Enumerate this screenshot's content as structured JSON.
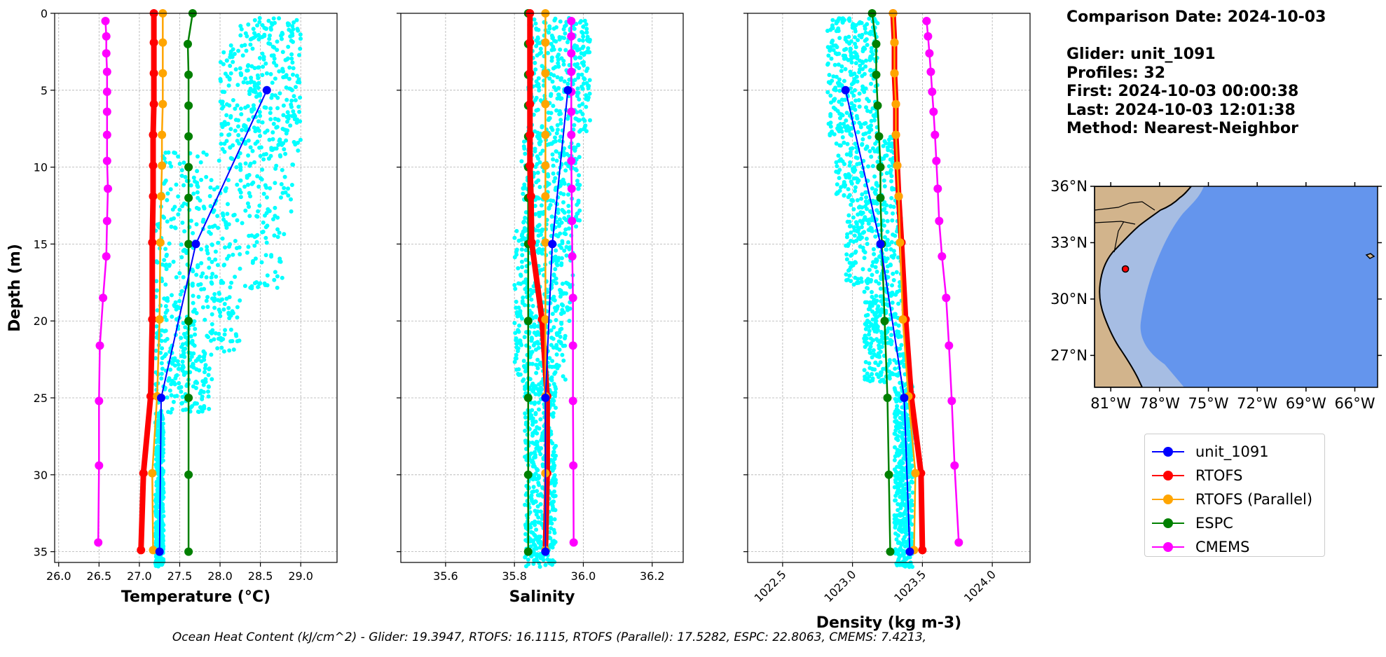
{
  "info": {
    "comparison_date": "Comparison Date: 2024-10-03",
    "glider": "Glider: unit_1091",
    "profiles": "Profiles: 32",
    "first": "First: 2024-10-03 00:00:38",
    "last": "Last: 2024-10-03 12:01:38",
    "method": "Method: Nearest-Neighbor"
  },
  "footer": "Ocean Heat Content (kJ/cm^2) - Glider: 19.3947,  RTOFS: 16.1115,  RTOFS (Parallel): 17.5282,  ESPC: 22.8063,  CMEMS: 7.4213,",
  "colors": {
    "glider": "#0000ff",
    "rtofs": "#ff0000",
    "rtofs_parallel": "#ffa500",
    "espc": "#008000",
    "cmems": "#ff00ff",
    "scatter": "#00ffff",
    "ocean": "#6495ed",
    "shelf": "#a6bde3",
    "land": "#d2b48c"
  },
  "legend": [
    {
      "label": "unit_1091",
      "color": "#0000ff"
    },
    {
      "label": "RTOFS",
      "color": "#ff0000"
    },
    {
      "label": "RTOFS (Parallel)",
      "color": "#ffa500"
    },
    {
      "label": "ESPC",
      "color": "#008000"
    },
    {
      "label": "CMEMS",
      "color": "#ff00ff"
    }
  ],
  "chart_data": [
    {
      "type": "line",
      "xlabel": "Temperature (°C)",
      "ylabel": "Depth (m)",
      "xlim": [
        25.95,
        29.45
      ],
      "ylim": [
        35.7,
        0
      ],
      "xticks": [
        26.0,
        26.5,
        27.0,
        27.5,
        28.0,
        28.5,
        29.0
      ],
      "yticks": [
        0,
        5,
        10,
        15,
        20,
        25,
        30,
        35
      ],
      "grid": true,
      "scatter_cloud": {
        "name": "glider profiles",
        "bands": [
          {
            "depth": [
              0.3,
              2.0
            ],
            "xmin": 28.25,
            "xmax": 29.0
          },
          {
            "depth": [
              2.0,
              9.0
            ],
            "xmin": 28.0,
            "xmax": 29.0
          },
          {
            "depth": [
              9.0,
              13.0
            ],
            "xmin": 27.25,
            "xmax": 28.95
          },
          {
            "depth": [
              13.0,
              18.0
            ],
            "xmin": 27.2,
            "xmax": 28.8
          },
          {
            "depth": [
              18.0,
              22.0
            ],
            "xmin": 27.2,
            "xmax": 28.25
          },
          {
            "depth": [
              22.0,
              26.0
            ],
            "xmin": 27.2,
            "xmax": 27.9
          },
          {
            "depth": [
              26.0,
              36.0
            ],
            "xmin": 27.2,
            "xmax": 27.3
          }
        ]
      },
      "series": [
        {
          "name": "unit_1091",
          "color": "#0000ff",
          "depth": [
            5,
            15,
            25,
            35
          ],
          "values": [
            28.58,
            27.7,
            27.27,
            27.25
          ]
        },
        {
          "name": "RTOFS",
          "color": "#ff0000",
          "depth": [
            0,
            1.9,
            3.9,
            5.9,
            7.9,
            9.9,
            11.9,
            14.9,
            19.9,
            24.9,
            29.9,
            34.9
          ],
          "values": [
            27.18,
            27.18,
            27.18,
            27.18,
            27.17,
            27.17,
            27.17,
            27.16,
            27.16,
            27.14,
            27.05,
            27.02
          ]
        },
        {
          "name": "RTOFS (Parallel)",
          "color": "#ffa500",
          "depth": [
            0,
            1.9,
            3.9,
            5.9,
            7.9,
            9.9,
            11.9,
            14.9,
            19.9,
            24.9,
            29.9,
            34.9
          ],
          "values": [
            27.29,
            27.29,
            27.29,
            27.29,
            27.28,
            27.28,
            27.27,
            27.26,
            27.25,
            27.22,
            27.16,
            27.17
          ]
        },
        {
          "name": "ESPC",
          "color": "#008000",
          "depth": [
            0,
            2,
            4,
            6,
            8,
            10,
            12,
            15,
            20,
            25,
            30,
            35
          ],
          "values": [
            27.66,
            27.6,
            27.61,
            27.61,
            27.61,
            27.61,
            27.61,
            27.61,
            27.61,
            27.61,
            27.61,
            27.61
          ]
        },
        {
          "name": "CMEMS",
          "color": "#ff00ff",
          "depth": [
            0.5,
            1.5,
            2.6,
            3.8,
            5.1,
            6.4,
            7.9,
            9.6,
            11.4,
            13.5,
            15.8,
            18.5,
            21.6,
            25.2,
            29.4,
            34.4
          ],
          "values": [
            26.58,
            26.59,
            26.59,
            26.6,
            26.6,
            26.6,
            26.6,
            26.6,
            26.61,
            26.6,
            26.59,
            26.55,
            26.51,
            26.5,
            26.5,
            26.49
          ]
        }
      ]
    },
    {
      "type": "line",
      "xlabel": "Salinity",
      "ylabel": "",
      "xlim": [
        35.47,
        36.29
      ],
      "ylim": [
        35.7,
        0
      ],
      "xticks": [
        35.6,
        35.8,
        36.0,
        36.2
      ],
      "yticks": [
        0,
        5,
        10,
        15,
        20,
        25,
        30,
        35
      ],
      "grid": true,
      "scatter_cloud": {
        "name": "glider profiles",
        "bands": [
          {
            "depth": [
              0.3,
              8.0
            ],
            "xmin": 35.84,
            "xmax": 36.02
          },
          {
            "depth": [
              8.0,
              14.0
            ],
            "xmin": 35.82,
            "xmax": 35.99
          },
          {
            "depth": [
              14.0,
              20.0
            ],
            "xmin": 35.8,
            "xmax": 35.97
          },
          {
            "depth": [
              20.0,
              24.0
            ],
            "xmin": 35.8,
            "xmax": 35.95
          },
          {
            "depth": [
              24.0,
              36.0
            ],
            "xmin": 35.83,
            "xmax": 35.92
          }
        ]
      },
      "series": [
        {
          "name": "unit_1091",
          "color": "#0000ff",
          "depth": [
            5,
            15,
            25,
            35
          ],
          "values": [
            35.955,
            35.91,
            35.89,
            35.89
          ]
        },
        {
          "name": "RTOFS",
          "color": "#ff0000",
          "depth": [
            0,
            1.9,
            3.9,
            5.9,
            7.9,
            9.9,
            11.9,
            14.9,
            19.9,
            24.9,
            29.9,
            34.9
          ],
          "values": [
            35.845,
            35.845,
            35.845,
            35.845,
            35.845,
            35.845,
            35.848,
            35.85,
            35.88,
            35.895,
            35.895,
            35.89
          ]
        },
        {
          "name": "RTOFS (Parallel)",
          "color": "#ffa500",
          "depth": [
            0,
            1.9,
            3.9,
            5.9,
            7.9,
            9.9,
            11.9,
            14.9,
            19.9,
            24.9,
            29.9,
            34.9
          ],
          "values": [
            35.89,
            35.89,
            35.89,
            35.89,
            35.89,
            35.89,
            35.89,
            35.89,
            35.89,
            35.89,
            35.89,
            35.89
          ]
        },
        {
          "name": "ESPC",
          "color": "#008000",
          "depth": [
            0,
            2,
            4,
            6,
            8,
            10,
            12,
            15,
            20,
            25,
            30,
            35
          ],
          "values": [
            35.84,
            35.84,
            35.84,
            35.84,
            35.84,
            35.84,
            35.84,
            35.84,
            35.84,
            35.84,
            35.84,
            35.84
          ]
        },
        {
          "name": "CMEMS",
          "color": "#ff00ff",
          "depth": [
            0.5,
            1.5,
            2.6,
            3.8,
            5.1,
            6.4,
            7.9,
            9.6,
            11.4,
            13.5,
            15.8,
            18.5,
            21.6,
            25.2,
            29.4,
            34.4
          ],
          "values": [
            35.965,
            35.965,
            35.965,
            35.965,
            35.965,
            35.965,
            35.965,
            35.965,
            35.966,
            35.967,
            35.968,
            35.97,
            35.97,
            35.97,
            35.971,
            35.972
          ]
        }
      ]
    },
    {
      "type": "line",
      "xlabel": "Density (kg m-3)",
      "ylabel": "",
      "xlim": [
        1022.25,
        1024.27
      ],
      "ylim": [
        35.7,
        0
      ],
      "xticks": [
        1022.5,
        1023.0,
        1023.5,
        1024.0
      ],
      "yticks": [
        0,
        5,
        10,
        15,
        20,
        25,
        30,
        35
      ],
      "grid": true,
      "scatter_cloud": {
        "name": "glider profiles",
        "bands": [
          {
            "depth": [
              0.3,
              8.0
            ],
            "xmin": 1022.82,
            "xmax": 1023.18
          },
          {
            "depth": [
              8.0,
              12.0
            ],
            "xmin": 1022.88,
            "xmax": 1023.3
          },
          {
            "depth": [
              12.0,
              18.0
            ],
            "xmin": 1022.95,
            "xmax": 1023.35
          },
          {
            "depth": [
              18.0,
              24.0
            ],
            "xmin": 1023.08,
            "xmax": 1023.38
          },
          {
            "depth": [
              24.0,
              36.0
            ],
            "xmin": 1023.3,
            "xmax": 1023.43
          }
        ]
      },
      "series": [
        {
          "name": "unit_1091",
          "color": "#0000ff",
          "depth": [
            5,
            15,
            25,
            35
          ],
          "values": [
            1022.95,
            1023.2,
            1023.37,
            1023.41
          ]
        },
        {
          "name": "RTOFS",
          "color": "#ff0000",
          "depth": [
            0,
            1.9,
            3.9,
            5.9,
            7.9,
            9.9,
            11.9,
            14.9,
            19.9,
            24.9,
            29.9,
            34.9
          ],
          "values": [
            1023.29,
            1023.3,
            1023.3,
            1023.31,
            1023.31,
            1023.32,
            1023.33,
            1023.35,
            1023.38,
            1023.42,
            1023.49,
            1023.5
          ]
        },
        {
          "name": "RTOFS (Parallel)",
          "color": "#ffa500",
          "depth": [
            0,
            1.9,
            3.9,
            5.9,
            7.9,
            9.9,
            11.9,
            14.9,
            19.9,
            24.9,
            29.9,
            34.9
          ],
          "values": [
            1023.29,
            1023.3,
            1023.3,
            1023.31,
            1023.31,
            1023.32,
            1023.33,
            1023.34,
            1023.36,
            1023.4,
            1023.45,
            1023.44
          ]
        },
        {
          "name": "ESPC",
          "color": "#008000",
          "depth": [
            0,
            2,
            4,
            6,
            8,
            10,
            12,
            15,
            20,
            25,
            30,
            35
          ],
          "values": [
            1023.14,
            1023.17,
            1023.17,
            1023.18,
            1023.19,
            1023.2,
            1023.2,
            1023.21,
            1023.23,
            1023.25,
            1023.26,
            1023.27
          ]
        },
        {
          "name": "CMEMS",
          "color": "#ff00ff",
          "depth": [
            0.5,
            1.5,
            2.6,
            3.8,
            5.1,
            6.4,
            7.9,
            9.6,
            11.4,
            13.5,
            15.8,
            18.5,
            21.6,
            25.2,
            29.4,
            34.4
          ],
          "values": [
            1023.53,
            1023.54,
            1023.55,
            1023.56,
            1023.57,
            1023.58,
            1023.59,
            1023.6,
            1023.61,
            1023.62,
            1023.64,
            1023.67,
            1023.69,
            1023.71,
            1023.73,
            1023.76
          ]
        }
      ]
    }
  ],
  "map": {
    "lon_ticks": [
      "81°W",
      "78°W",
      "75°W",
      "72°W",
      "69°W",
      "66°W"
    ],
    "lon_values": [
      -81,
      -78,
      -75,
      -72,
      -69,
      -66
    ],
    "lat_ticks": [
      "36°N",
      "33°N",
      "30°N",
      "27°N"
    ],
    "lat_values": [
      36,
      33,
      30,
      27
    ],
    "lon_range": [
      -82.0,
      -64.6
    ],
    "lat_range": [
      25.3,
      36.0
    ],
    "glider_position": {
      "lon": -80.1,
      "lat": 31.6
    }
  }
}
